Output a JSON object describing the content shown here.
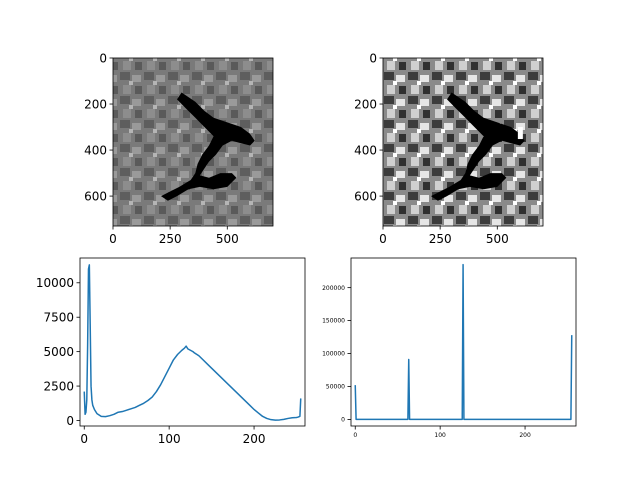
{
  "colors": {
    "line": "#1f77b4",
    "axis": "#000000",
    "background": "#ffffff"
  },
  "chart_data": [
    {
      "type": "image",
      "panel": "top-left",
      "xlim": [
        0,
        700
      ],
      "ylim": [
        730,
        0
      ],
      "xticks": [
        0,
        250,
        500
      ],
      "yticks": [
        0,
        200,
        400,
        600
      ],
      "image_style": "grayscale satellite image, original"
    },
    {
      "type": "image",
      "panel": "top-right",
      "xlim": [
        0,
        700
      ],
      "ylim": [
        730,
        0
      ],
      "xticks": [
        0,
        250,
        500
      ],
      "yticks": [
        0,
        200,
        400,
        600
      ],
      "image_style": "grayscale satellite image, contrast enhanced"
    },
    {
      "type": "line",
      "panel": "bottom-left",
      "xlim": [
        -5,
        260
      ],
      "ylim": [
        -400,
        11800
      ],
      "xticks": [
        0,
        100,
        200
      ],
      "yticks": [
        0,
        2500,
        5000,
        7500,
        10000
      ],
      "ytick_labels": [
        "0",
        "2500",
        "5000",
        "7500",
        "10000"
      ],
      "series": [
        {
          "x": [
            0,
            1,
            2,
            3,
            4,
            5,
            6,
            7,
            8,
            9,
            10,
            12,
            15,
            20,
            25,
            30,
            35,
            40,
            45,
            50,
            55,
            60,
            65,
            70,
            75,
            80,
            85,
            90,
            95,
            100,
            105,
            110,
            115,
            118,
            120,
            122,
            125,
            128,
            130,
            135,
            140,
            145,
            150,
            155,
            160,
            165,
            170,
            175,
            180,
            185,
            190,
            195,
            200,
            205,
            210,
            215,
            220,
            225,
            230,
            235,
            240,
            245,
            250,
            252,
            254,
            255
          ],
          "values": [
            2100,
            450,
            600,
            1500,
            5500,
            11000,
            11300,
            7000,
            2500,
            1500,
            1100,
            800,
            500,
            300,
            280,
            350,
            450,
            600,
            650,
            750,
            850,
            950,
            1100,
            1250,
            1450,
            1700,
            2100,
            2600,
            3200,
            3800,
            4400,
            4800,
            5100,
            5250,
            5400,
            5200,
            5100,
            5000,
            4900,
            4700,
            4400,
            4100,
            3800,
            3500,
            3200,
            2900,
            2600,
            2300,
            2000,
            1700,
            1400,
            1100,
            800,
            550,
            300,
            150,
            60,
            30,
            40,
            80,
            150,
            200,
            220,
            250,
            300,
            1600
          ]
        }
      ]
    },
    {
      "type": "line",
      "panel": "bottom-right",
      "xlim": [
        -5,
        260
      ],
      "ylim": [
        -10000,
        245000
      ],
      "xticks": [
        0,
        100,
        200
      ],
      "yticks": [
        0,
        50000,
        100000,
        150000,
        200000
      ],
      "ytick_labels": [
        "0",
        "50000",
        "100000",
        "150000",
        "200000"
      ],
      "series": [
        {
          "x": [
            0,
            1,
            2,
            62,
            63,
            64,
            65,
            126,
            127,
            128,
            129,
            254,
            255
          ],
          "values": [
            52000,
            0,
            0,
            0,
            91000,
            0,
            0,
            0,
            235000,
            0,
            0,
            0,
            128000
          ]
        }
      ]
    }
  ]
}
